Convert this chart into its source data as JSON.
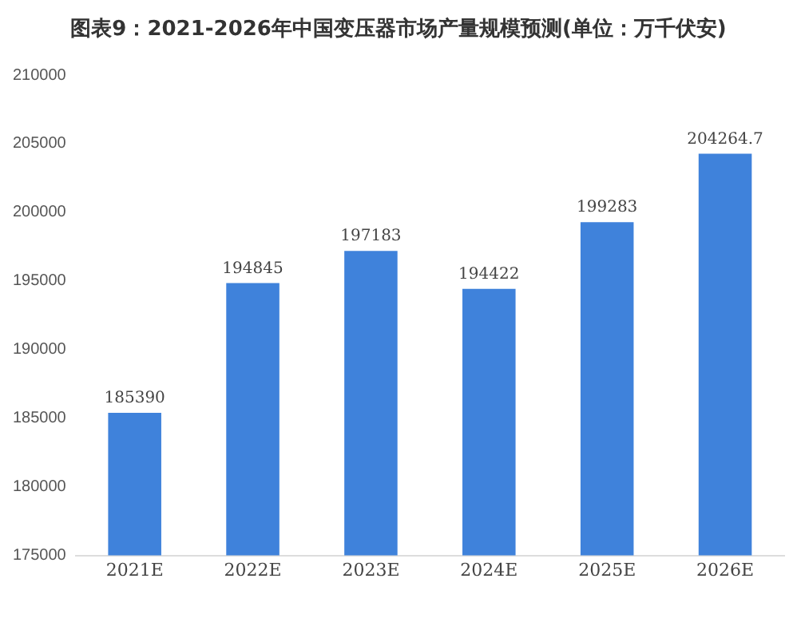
{
  "chart_data": {
    "type": "bar",
    "title": "图表9：2021-2026年中国变压器市场产量规模预测(单位：万千伏安)",
    "categories": [
      "2021E",
      "2022E",
      "2023E",
      "2024E",
      "2025E",
      "2026E"
    ],
    "values": [
      185390,
      194845,
      197183,
      194422,
      199283,
      204264.7
    ],
    "color": "#3f82db",
    "ylim": [
      175000,
      210000
    ],
    "yticks": [
      175000,
      180000,
      185000,
      190000,
      195000,
      200000,
      205000,
      210000
    ],
    "grid": false,
    "data_labels": true,
    "legend": false
  }
}
